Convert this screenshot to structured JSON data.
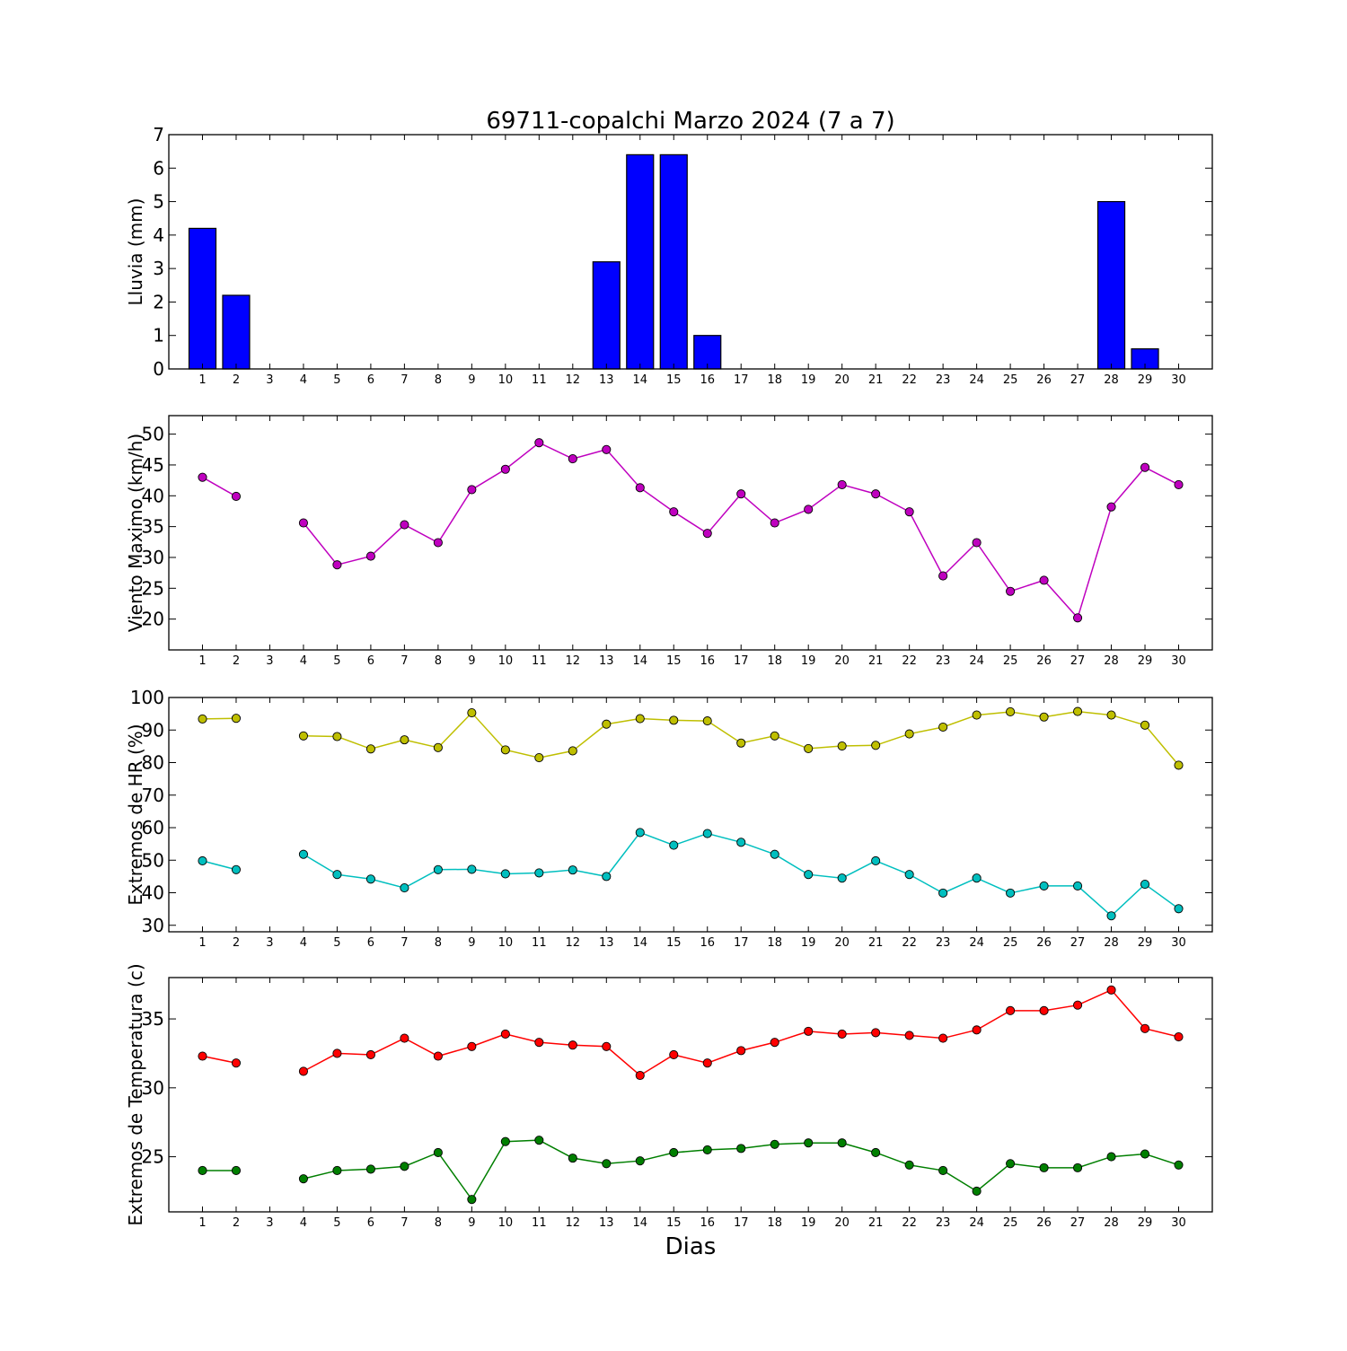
{
  "chart_data": {
    "title": "69711-copalchi Marzo 2024  (7 a 7)",
    "xlabel": "Dias",
    "days": [
      1,
      2,
      3,
      4,
      5,
      6,
      7,
      8,
      9,
      10,
      11,
      12,
      13,
      14,
      15,
      16,
      17,
      18,
      19,
      20,
      21,
      22,
      23,
      24,
      25,
      26,
      27,
      28,
      29,
      30
    ],
    "panels": [
      {
        "type": "bar",
        "ylabel": "Lluvia (mm)",
        "ylim": [
          0,
          7
        ],
        "yticks": [
          0,
          1,
          2,
          3,
          4,
          5,
          6,
          7
        ],
        "series": [
          {
            "color": "#0000ff",
            "values": [
              4.2,
              2.2,
              null,
              0,
              0,
              0,
              0,
              0,
              0,
              0,
              0,
              0,
              3.2,
              6.4,
              6.4,
              1.0,
              0,
              0,
              0,
              0,
              0,
              0,
              0,
              0,
              0,
              0,
              0,
              5.0,
              0.6,
              0
            ]
          }
        ]
      },
      {
        "type": "line",
        "ylabel": "Viento Maximo (km/h)",
        "ylim": [
          15,
          53
        ],
        "yticks": [
          20,
          25,
          30,
          35,
          40,
          45,
          50
        ],
        "series": [
          {
            "color": "#bf00bf",
            "values": [
              43.0,
              39.9,
              null,
              35.6,
              28.8,
              30.2,
              35.3,
              32.4,
              41.0,
              44.3,
              48.6,
              46.0,
              47.5,
              41.3,
              37.4,
              33.9,
              40.3,
              35.6,
              37.8,
              41.8,
              40.3,
              37.4,
              27.0,
              32.4,
              24.5,
              26.3,
              20.2,
              38.2,
              44.6,
              41.8
            ]
          }
        ]
      },
      {
        "type": "line",
        "ylabel": "Extremos de HR (%)",
        "ylim": [
          28,
          100
        ],
        "yticks": [
          30,
          40,
          50,
          60,
          70,
          80,
          90,
          100
        ],
        "series": [
          {
            "color": "#bfbf00",
            "values": [
              93.4,
              93.6,
              null,
              88.2,
              88.0,
              84.2,
              87.0,
              84.6,
              95.3,
              83.9,
              81.5,
              83.6,
              91.8,
              93.5,
              93.0,
              92.8,
              86.0,
              88.2,
              84.3,
              85.1,
              85.3,
              88.8,
              90.9,
              94.6,
              95.6,
              94.0,
              95.7,
              94.6,
              91.5,
              79.2
            ]
          },
          {
            "color": "#00bfbf",
            "values": [
              49.8,
              47.1,
              null,
              51.8,
              45.6,
              44.2,
              41.5,
              47.1,
              47.2,
              45.8,
              46.1,
              47.0,
              45.0,
              58.5,
              54.6,
              58.2,
              55.5,
              51.8,
              45.6,
              44.5,
              49.8,
              45.6,
              39.9,
              44.5,
              39.9,
              42.1,
              42.1,
              32.9,
              42.6,
              35.1
            ]
          }
        ]
      },
      {
        "type": "line",
        "ylabel": "Extremos de Temperatura (c)",
        "ylim": [
          21,
          38
        ],
        "yticks": [
          25,
          30,
          35
        ],
        "series": [
          {
            "color": "#ff0000",
            "values": [
              32.3,
              31.8,
              null,
              31.2,
              32.5,
              32.4,
              33.6,
              32.3,
              33.0,
              33.9,
              33.3,
              33.1,
              33.0,
              30.9,
              32.4,
              31.8,
              32.7,
              33.3,
              34.1,
              33.9,
              34.0,
              33.8,
              33.6,
              34.2,
              35.6,
              35.6,
              36.0,
              37.1,
              34.3,
              33.7
            ]
          },
          {
            "color": "#007f00",
            "values": [
              24.0,
              24.0,
              null,
              23.4,
              24.0,
              24.1,
              24.3,
              25.3,
              21.9,
              26.1,
              26.2,
              24.9,
              24.5,
              24.7,
              25.3,
              25.5,
              25.6,
              25.9,
              26.0,
              26.0,
              25.3,
              24.4,
              24.0,
              22.5,
              24.5,
              24.2,
              24.2,
              25.0,
              25.2,
              24.4
            ]
          }
        ]
      }
    ]
  }
}
